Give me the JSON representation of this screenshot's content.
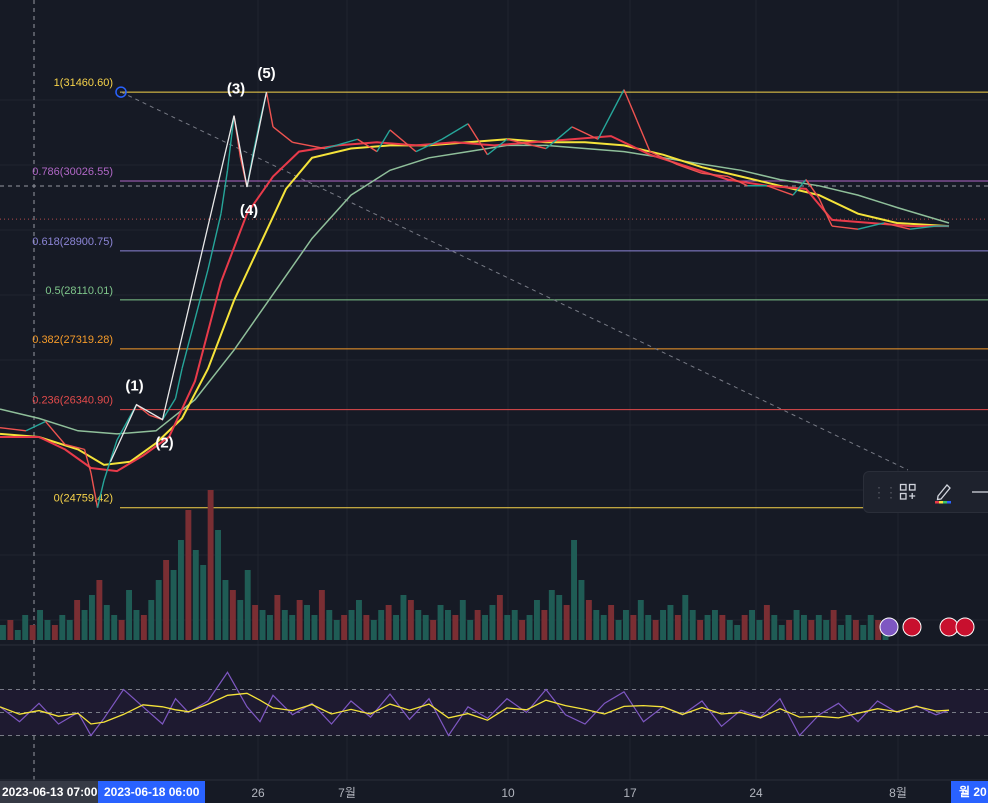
{
  "chart_data": {
    "type": "line",
    "title": "",
    "fib_levels": [
      {
        "label": "1(31460.60)",
        "value": 31460.6,
        "color": "#f7d34a"
      },
      {
        "label": "0.786(30026.55)",
        "value": 30026.55,
        "color": "#b067c6"
      },
      {
        "label": "0.618(28900.75)",
        "value": 28900.75,
        "color": "#8c85d6"
      },
      {
        "label": "0.5(28110.01)",
        "value": 28110.01,
        "color": "#7fc68b"
      },
      {
        "label": "0.382(27319.28)",
        "value": 27319.28,
        "color": "#f59b2a"
      },
      {
        "label": "0.236(26340.90)",
        "value": 26340.9,
        "color": "#e34b4b"
      },
      {
        "label": "0(24759.42)",
        "value": 24759.42,
        "color": "#f7d34a"
      }
    ],
    "elliott_waves": [
      {
        "label": "(1)",
        "value": 26420
      },
      {
        "label": "(2)",
        "value": 26180
      },
      {
        "label": "(3)",
        "value": 31080
      },
      {
        "label": "(4)",
        "value": 29930
      },
      {
        "label": "(5)",
        "value": 31460
      }
    ],
    "x_ticks": [
      "26",
      "7월",
      "10",
      "17",
      "24",
      "8월"
    ],
    "time_badges": [
      "2023-06-13  07:00",
      "2023-06-18  06:00",
      "월 20"
    ],
    "price_path": [
      [
        0,
        26050
      ],
      [
        4,
        26000
      ],
      [
        7,
        26150
      ],
      [
        10,
        25780
      ],
      [
        13,
        25700
      ],
      [
        14,
        25320
      ],
      [
        15,
        24760
      ],
      [
        16,
        25200
      ],
      [
        18,
        25850
      ],
      [
        21,
        26420
      ],
      [
        23,
        26250
      ],
      [
        25,
        26180
      ],
      [
        27,
        26520
      ],
      [
        28,
        27000
      ],
      [
        30,
        27800
      ],
      [
        32,
        28600
      ],
      [
        34,
        29500
      ],
      [
        35,
        30200
      ],
      [
        36,
        31080
      ],
      [
        37,
        30400
      ],
      [
        38,
        29930
      ],
      [
        39,
        30500
      ],
      [
        40,
        31000
      ],
      [
        41,
        31460
      ],
      [
        42,
        30900
      ],
      [
        45,
        30650
      ],
      [
        50,
        30550
      ],
      [
        55,
        30700
      ],
      [
        58,
        30500
      ],
      [
        60,
        30850
      ],
      [
        64,
        30500
      ],
      [
        68,
        30700
      ],
      [
        72,
        30950
      ],
      [
        75,
        30450
      ],
      [
        78,
        30700
      ],
      [
        84,
        30550
      ],
      [
        88,
        30900
      ],
      [
        92,
        30700
      ],
      [
        96,
        31500
      ],
      [
        98,
        31000
      ],
      [
        100,
        30500
      ],
      [
        104,
        30300
      ],
      [
        108,
        30150
      ],
      [
        112,
        30100
      ],
      [
        115,
        29950
      ],
      [
        118,
        29950
      ],
      [
        122,
        29800
      ],
      [
        124,
        30050
      ],
      [
        126,
        29750
      ],
      [
        128,
        29300
      ],
      [
        132,
        29250
      ],
      [
        136,
        29350
      ],
      [
        140,
        29250
      ],
      [
        144,
        29300
      ],
      [
        146,
        29300
      ]
    ],
    "ma_fast_path": [
      [
        0,
        25900
      ],
      [
        6,
        25900
      ],
      [
        10,
        25700
      ],
      [
        14,
        25400
      ],
      [
        18,
        25350
      ],
      [
        22,
        25600
      ],
      [
        26,
        25900
      ],
      [
        30,
        26800
      ],
      [
        34,
        28400
      ],
      [
        38,
        29500
      ],
      [
        42,
        30100
      ],
      [
        46,
        30500
      ],
      [
        52,
        30600
      ],
      [
        58,
        30650
      ],
      [
        64,
        30600
      ],
      [
        70,
        30650
      ],
      [
        76,
        30600
      ],
      [
        82,
        30650
      ],
      [
        88,
        30700
      ],
      [
        94,
        30750
      ],
      [
        100,
        30450
      ],
      [
        106,
        30250
      ],
      [
        112,
        30050
      ],
      [
        118,
        29950
      ],
      [
        124,
        29900
      ],
      [
        128,
        29400
      ],
      [
        134,
        29350
      ],
      [
        140,
        29300
      ],
      [
        146,
        29300
      ]
    ],
    "ma_mid_path": [
      [
        0,
        25950
      ],
      [
        6,
        25900
      ],
      [
        12,
        25700
      ],
      [
        16,
        25450
      ],
      [
        20,
        25500
      ],
      [
        24,
        25800
      ],
      [
        28,
        26200
      ],
      [
        32,
        27000
      ],
      [
        36,
        28100
      ],
      [
        40,
        29000
      ],
      [
        44,
        29900
      ],
      [
        48,
        30400
      ],
      [
        54,
        30550
      ],
      [
        60,
        30600
      ],
      [
        66,
        30600
      ],
      [
        72,
        30650
      ],
      [
        78,
        30700
      ],
      [
        84,
        30650
      ],
      [
        90,
        30650
      ],
      [
        96,
        30600
      ],
      [
        102,
        30450
      ],
      [
        108,
        30250
      ],
      [
        114,
        30100
      ],
      [
        120,
        29950
      ],
      [
        126,
        29800
      ],
      [
        132,
        29500
      ],
      [
        138,
        29350
      ],
      [
        146,
        29300
      ]
    ],
    "ma_slow_path": [
      [
        0,
        26350
      ],
      [
        6,
        26200
      ],
      [
        12,
        26000
      ],
      [
        18,
        25950
      ],
      [
        24,
        26000
      ],
      [
        30,
        26500
      ],
      [
        36,
        27300
      ],
      [
        42,
        28200
      ],
      [
        48,
        29100
      ],
      [
        54,
        29800
      ],
      [
        60,
        30200
      ],
      [
        66,
        30400
      ],
      [
        72,
        30500
      ],
      [
        78,
        30600
      ],
      [
        84,
        30600
      ],
      [
        90,
        30550
      ],
      [
        96,
        30500
      ],
      [
        102,
        30400
      ],
      [
        108,
        30300
      ],
      [
        114,
        30200
      ],
      [
        120,
        30050
      ],
      [
        126,
        29950
      ],
      [
        132,
        29800
      ],
      [
        138,
        29600
      ],
      [
        146,
        29350
      ]
    ],
    "oscillator_path": [
      [
        0,
        55
      ],
      [
        3,
        42
      ],
      [
        6,
        58
      ],
      [
        9,
        40
      ],
      [
        12,
        50
      ],
      [
        14,
        30
      ],
      [
        16,
        45
      ],
      [
        19,
        70
      ],
      [
        22,
        55
      ],
      [
        25,
        40
      ],
      [
        27,
        62
      ],
      [
        29,
        50
      ],
      [
        32,
        60
      ],
      [
        35,
        85
      ],
      [
        38,
        55
      ],
      [
        40,
        42
      ],
      [
        42,
        65
      ],
      [
        45,
        48
      ],
      [
        48,
        58
      ],
      [
        51,
        40
      ],
      [
        54,
        60
      ],
      [
        57,
        46
      ],
      [
        60,
        66
      ],
      [
        63,
        44
      ],
      [
        66,
        62
      ],
      [
        69,
        30
      ],
      [
        72,
        55
      ],
      [
        75,
        45
      ],
      [
        78,
        62
      ],
      [
        81,
        50
      ],
      [
        84,
        70
      ],
      [
        87,
        48
      ],
      [
        90,
        40
      ],
      [
        93,
        58
      ],
      [
        96,
        68
      ],
      [
        99,
        42
      ],
      [
        102,
        55
      ],
      [
        105,
        48
      ],
      [
        108,
        60
      ],
      [
        111,
        38
      ],
      [
        114,
        52
      ],
      [
        117,
        46
      ],
      [
        120,
        62
      ],
      [
        123,
        30
      ],
      [
        126,
        48
      ],
      [
        129,
        58
      ],
      [
        132,
        42
      ],
      [
        135,
        60
      ],
      [
        138,
        50
      ],
      [
        141,
        56
      ],
      [
        144,
        48
      ],
      [
        146,
        52
      ]
    ],
    "volume": [
      3,
      4,
      2,
      5,
      3,
      6,
      4,
      3,
      5,
      4,
      8,
      6,
      9,
      12,
      7,
      5,
      4,
      10,
      6,
      5,
      8,
      12,
      16,
      14,
      20,
      26,
      18,
      15,
      30,
      22,
      12,
      10,
      8,
      14,
      7,
      6,
      5,
      9,
      6,
      5,
      8,
      7,
      5,
      10,
      6,
      4,
      5,
      6,
      8,
      5,
      4,
      6,
      7,
      5,
      9,
      8,
      6,
      5,
      4,
      7,
      6,
      5,
      8,
      4,
      6,
      5,
      7,
      9,
      5,
      6,
      4,
      5,
      8,
      6,
      10,
      9,
      7,
      20,
      12,
      8,
      6,
      5,
      7,
      4,
      6,
      5,
      8,
      5,
      4,
      6,
      7,
      5,
      9,
      6,
      4,
      5,
      6,
      5,
      4,
      3,
      5,
      6,
      4,
      7,
      5,
      3,
      4,
      6,
      5,
      4,
      5,
      4,
      6,
      3,
      5,
      4,
      3,
      5,
      4,
      3
    ],
    "ylim": [
      24400,
      32300
    ],
    "x_range": [
      0,
      152
    ],
    "current_price": 29300,
    "colors": {
      "background": "#161a25",
      "ma_fast": "#e83a4a",
      "ma_mid": "#f5e33a",
      "ma_slow": "#8fbf9a",
      "oscillator": "#7e57c2",
      "oscillator_signal": "#f5e33a",
      "wave_line": "#e8e8e8",
      "trend_line": "#787b86",
      "volume_up": "#1f5c55",
      "volume_down": "#7a2e33"
    }
  }
}
